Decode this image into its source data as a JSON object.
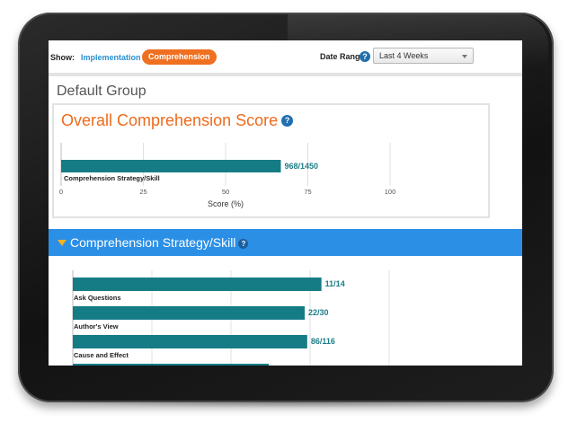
{
  "toolbar": {
    "show_label": "Show:",
    "implementation_label": "Implementation",
    "comprehension_label": "Comprehension",
    "date_range_label": "Date Range",
    "date_range_value": "Last 4 Weeks"
  },
  "group_title": "Default Group",
  "overall": {
    "title": "Overall Comprehension Score"
  },
  "section": {
    "title": "Comprehension Strategy/Skill"
  },
  "chart_data": [
    {
      "type": "bar",
      "orientation": "horizontal",
      "categories": [
        "Comprehension Strategy/Skill"
      ],
      "values": [
        66.8
      ],
      "data_labels": [
        "968/1450"
      ],
      "xlabel": "Score (%)",
      "xticks": [
        "0",
        "25",
        "50",
        "75",
        "100"
      ],
      "xlim": [
        0,
        100
      ],
      "grid": true
    },
    {
      "type": "bar",
      "orientation": "horizontal",
      "categories": [
        "Ask Questions",
        "Author's View",
        "Cause and Effect"
      ],
      "values": [
        78.6,
        73.3,
        74.1
      ],
      "data_labels": [
        "11/14",
        "22/30",
        "86/116"
      ],
      "xlim": [
        0,
        100
      ],
      "grid": true
    }
  ],
  "colors": {
    "accent_orange": "#ee7020",
    "section_blue": "#2b8fe6",
    "bar_teal": "#157c86",
    "link_blue": "#2a8fd0"
  },
  "icons": {
    "help": "question-circle-icon",
    "collapse": "triangle-down-icon",
    "dropdown": "chevron-down-icon"
  }
}
